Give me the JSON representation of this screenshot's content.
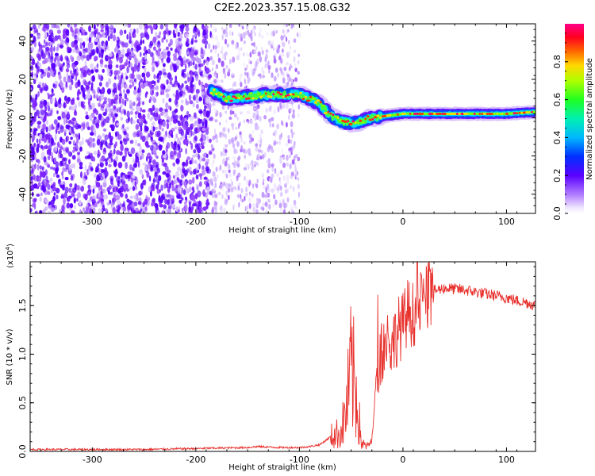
{
  "title": "C2E2.2023.357.15.08.G32",
  "chart_data": [
    {
      "type": "heatmap",
      "xlabel": "Height of straight line (km)",
      "ylabel": "Frequency (Hz)",
      "xlim": [
        -360,
        128
      ],
      "ylim": [
        -50,
        49
      ],
      "xticks": [
        -300,
        -200,
        -100,
        0,
        100
      ],
      "yticks": [
        -40,
        -20,
        0,
        20,
        40
      ],
      "colorbar": {
        "label": "Normalized spectral amplitude",
        "ticks": [
          0.0,
          0.2,
          0.4,
          0.6,
          0.8
        ],
        "range": [
          0,
          1
        ],
        "colormap": "rainbow (white/violet low, blue, cyan, green, yellow, red, magenta high)"
      },
      "features": [
        {
          "name": "noise",
          "x_range": [
            -360,
            -185
          ],
          "freq_range": [
            -50,
            49
          ],
          "amplitude": "low (violet speckle)"
        },
        {
          "name": "sparse-noise",
          "x_range": [
            -185,
            -100
          ],
          "freq_range": [
            -50,
            49
          ],
          "amplitude": "very low (faint violet)"
        },
        {
          "name": "tone-track",
          "points": [
            [
              -185,
              14
            ],
            [
              -170,
              10
            ],
            [
              -150,
              11
            ],
            [
              -130,
              12
            ],
            [
              -110,
              12
            ],
            [
              -100,
              12
            ],
            [
              -90,
              10
            ],
            [
              -80,
              7
            ],
            [
              -70,
              1
            ],
            [
              -60,
              -2
            ],
            [
              -45,
              -3
            ],
            [
              -30,
              0
            ],
            [
              -15,
              1
            ],
            [
              0,
              2
            ],
            [
              50,
              2
            ],
            [
              100,
              2
            ],
            [
              128,
              3
            ]
          ],
          "amplitude": "high"
        }
      ]
    },
    {
      "type": "line",
      "xlabel": "Height of straight line (km)",
      "ylabel": "SNR (10 * v/v)",
      "multiplier": "(x10^4)",
      "multiplier_base": "(x10",
      "multiplier_exp": "4",
      "xlim": [
        -360,
        128
      ],
      "ylim": [
        0,
        1.95
      ],
      "xticks": [
        -300,
        -200,
        -100,
        0,
        100
      ],
      "yticks": [
        0.0,
        0.5,
        1.0,
        1.5
      ],
      "series_color": "#e8322e",
      "x": [
        -360,
        -300,
        -250,
        -200,
        -150,
        -140,
        -120,
        -100,
        -90,
        -80,
        -70,
        -60,
        -55,
        -50,
        -45,
        -40,
        -35,
        -30,
        -25,
        -20,
        -15,
        -10,
        -5,
        0,
        5,
        10,
        15,
        20,
        25,
        30,
        40,
        50,
        60,
        70,
        80,
        90,
        100,
        110,
        120,
        128
      ],
      "values": [
        0.02,
        0.02,
        0.02,
        0.03,
        0.04,
        0.05,
        0.04,
        0.04,
        0.05,
        0.07,
        0.15,
        0.2,
        0.4,
        0.85,
        0.6,
        0.08,
        0.05,
        0.1,
        0.9,
        1.05,
        1.15,
        1.1,
        1.25,
        1.3,
        1.45,
        1.4,
        1.5,
        1.55,
        1.6,
        1.65,
        1.68,
        1.67,
        1.66,
        1.64,
        1.62,
        1.6,
        1.58,
        1.55,
        1.53,
        1.5
      ]
    }
  ]
}
